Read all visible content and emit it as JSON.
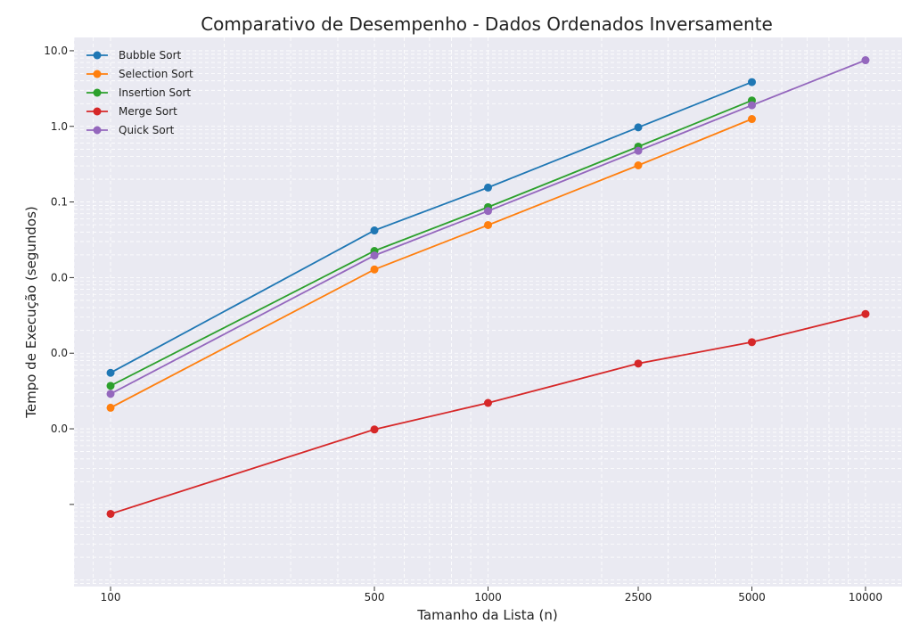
{
  "chart_data": {
    "type": "line",
    "title": "Comparativo de Desempenho - Dados Ordenados Inversamente",
    "xlabel": "Tamanho da Lista (n)",
    "ylabel": "Tempo de Execução (segundos)",
    "x_scale": "log",
    "y_scale": "log",
    "xlim": [
      80,
      12500
    ],
    "ylim": [
      8.2e-07,
      15
    ],
    "x": [
      100,
      500,
      1000,
      2500,
      5000,
      10000
    ],
    "x_tick_labels": [
      "100",
      "500",
      "1000",
      "2500",
      "5000",
      "10000"
    ],
    "y_tick_values": [
      1e-05,
      0.0001,
      0.001,
      0.01,
      0.1,
      1.0,
      10.0
    ],
    "y_tick_labels": [
      "",
      "0.0",
      "0.0",
      "0.0",
      "0.1",
      "1.0",
      "10.0"
    ],
    "grid": true,
    "legend_position": "top-left",
    "series": [
      {
        "name": "Bubble Sort",
        "color": "#1f77b4",
        "values": [
          0.00055,
          0.042,
          0.155,
          0.97,
          3.85,
          null
        ]
      },
      {
        "name": "Selection Sort",
        "color": "#ff7f0e",
        "values": [
          0.00019,
          0.0128,
          0.0495,
          0.305,
          1.25,
          null
        ]
      },
      {
        "name": "Insertion Sort",
        "color": "#2ca02c",
        "values": [
          0.00037,
          0.0225,
          0.0855,
          0.54,
          2.2,
          null
        ]
      },
      {
        "name": "Merge Sort",
        "color": "#d62728",
        "values": [
          7.5e-06,
          9.8e-05,
          0.00022,
          0.00073,
          0.0014,
          0.0033
        ]
      },
      {
        "name": "Quick Sort",
        "color": "#9467bd",
        "values": [
          0.00029,
          0.0196,
          0.076,
          0.475,
          1.9,
          7.5
        ]
      }
    ]
  }
}
